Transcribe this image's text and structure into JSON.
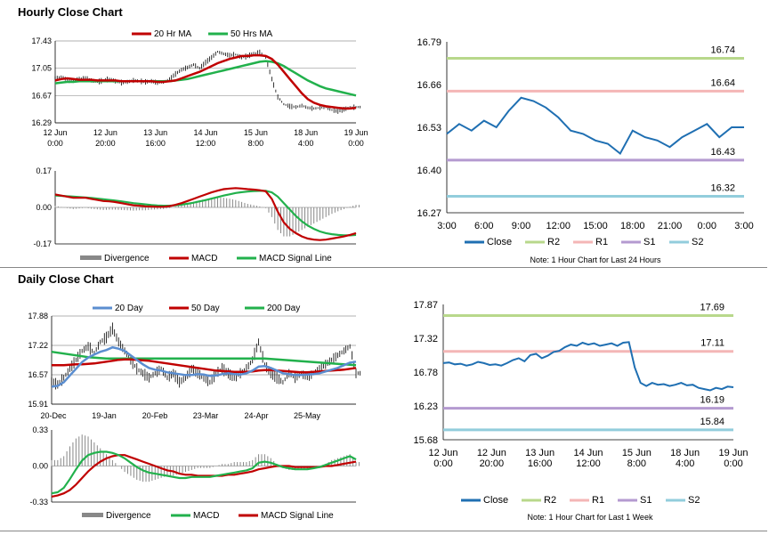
{
  "sections": {
    "hourly_title": "Hourly Close Chart",
    "daily_title": "Daily Close Chart"
  },
  "colors": {
    "close": "#1f6fb2",
    "ma20_hourly": "#c00000",
    "ma50_hourly": "#22b14c",
    "r2": "#b8d88b",
    "r1": "#f4b6b6",
    "s1": "#b49ad0",
    "s2": "#92cddc",
    "day20": "#5b8ed0",
    "day50": "#c00000",
    "day200": "#22b14c",
    "divergence": "#888888",
    "macd_hourly": "#c00000",
    "signal_hourly": "#22b14c",
    "macd_daily": "#22b14c",
    "signal_daily": "#c00000"
  },
  "chart_data": [
    {
      "id": "hourly_price",
      "type": "line",
      "title": "",
      "legend": [
        "20 Hr MA",
        "50 Hrs MA"
      ],
      "x_ticks": [
        "12 Jun\n0:00",
        "12 Jun\n20:00",
        "13 Jun\n16:00",
        "14 Jun\n12:00",
        "15 Jun\n8:00",
        "18 Jun\n4:00",
        "19 Jun\n0:00"
      ],
      "y_ticks": [
        "17.43",
        "17.05",
        "16.67",
        "16.29"
      ],
      "ylim": [
        16.29,
        17.43
      ],
      "series": [
        {
          "name": "Close",
          "values": [
            16.91,
            16.93,
            16.89,
            16.87,
            16.9,
            16.92,
            16.88,
            16.86,
            16.88,
            16.9,
            16.87,
            16.85,
            16.86,
            16.88,
            16.87,
            16.86,
            16.87,
            16.85,
            16.86,
            16.9,
            16.97,
            17.03,
            17.06,
            17.1,
            17.05,
            17.13,
            17.2,
            17.28,
            17.25,
            17.23,
            17.24,
            17.2,
            17.22,
            17.25,
            17.27,
            17.2,
            16.9,
            16.65,
            16.55,
            16.52,
            16.51,
            16.53,
            16.5,
            16.49,
            16.5,
            16.51,
            16.47,
            16.45,
            16.48,
            16.5,
            16.51
          ]
        },
        {
          "name": "20 Hr MA",
          "values": [
            16.88,
            16.9,
            16.91,
            16.9,
            16.89,
            16.89,
            16.89,
            16.88,
            16.88,
            16.88,
            16.88,
            16.87,
            16.87,
            16.87,
            16.87,
            16.87,
            16.87,
            16.86,
            16.86,
            16.87,
            16.88,
            16.91,
            16.94,
            16.97,
            17.0,
            17.04,
            17.08,
            17.12,
            17.15,
            17.18,
            17.2,
            17.22,
            17.22,
            17.23,
            17.23,
            17.22,
            17.18,
            17.1,
            17.0,
            16.9,
            16.8,
            16.7,
            16.62,
            16.57,
            16.54,
            16.52,
            16.51,
            16.5,
            16.49,
            16.49,
            16.5
          ]
        },
        {
          "name": "50 Hrs MA",
          "values": [
            16.84,
            16.85,
            16.86,
            16.86,
            16.87,
            16.87,
            16.87,
            16.87,
            16.87,
            16.87,
            16.87,
            16.87,
            16.87,
            16.87,
            16.87,
            16.87,
            16.87,
            16.87,
            16.87,
            16.87,
            16.88,
            16.89,
            16.9,
            16.92,
            16.94,
            16.96,
            16.98,
            17.0,
            17.02,
            17.04,
            17.06,
            17.08,
            17.1,
            17.12,
            17.14,
            17.15,
            17.14,
            17.12,
            17.08,
            17.03,
            16.98,
            16.93,
            16.88,
            16.84,
            16.8,
            16.77,
            16.75,
            16.73,
            16.71,
            16.69,
            16.67
          ]
        }
      ]
    },
    {
      "id": "hourly_macd",
      "type": "line",
      "legend": [
        "Divergence",
        "MACD",
        "MACD Signal Line"
      ],
      "y_ticks": [
        "0.17",
        "0.00",
        "-0.17"
      ],
      "ylim": [
        -0.17,
        0.17
      ],
      "series": [
        {
          "name": "MACD",
          "values": [
            0.06,
            0.055,
            0.05,
            0.045,
            0.045,
            0.045,
            0.04,
            0.035,
            0.03,
            0.028,
            0.025,
            0.02,
            0.015,
            0.01,
            0.008,
            0.005,
            0.004,
            0.003,
            0.003,
            0.006,
            0.012,
            0.02,
            0.03,
            0.04,
            0.05,
            0.06,
            0.07,
            0.078,
            0.085,
            0.088,
            0.09,
            0.088,
            0.085,
            0.083,
            0.08,
            0.075,
            0.04,
            -0.02,
            -0.07,
            -0.1,
            -0.12,
            -0.135,
            -0.145,
            -0.15,
            -0.152,
            -0.15,
            -0.145,
            -0.14,
            -0.135,
            -0.128,
            -0.12
          ]
        },
        {
          "name": "MACD Signal Line",
          "values": [
            0.055,
            0.054,
            0.052,
            0.05,
            0.048,
            0.046,
            0.044,
            0.041,
            0.038,
            0.035,
            0.032,
            0.028,
            0.024,
            0.02,
            0.017,
            0.014,
            0.011,
            0.009,
            0.008,
            0.008,
            0.01,
            0.013,
            0.017,
            0.022,
            0.028,
            0.034,
            0.041,
            0.048,
            0.055,
            0.061,
            0.067,
            0.071,
            0.074,
            0.076,
            0.077,
            0.077,
            0.07,
            0.05,
            0.02,
            -0.01,
            -0.04,
            -0.065,
            -0.085,
            -0.1,
            -0.112,
            -0.12,
            -0.125,
            -0.128,
            -0.13,
            -0.13,
            -0.128
          ]
        }
      ]
    },
    {
      "id": "hourly_pivot",
      "type": "line",
      "legend": [
        "Close",
        "R2",
        "R1",
        "S1",
        "S2"
      ],
      "note": "Note: 1 Hour Chart for Last 24 Hours",
      "x_ticks": [
        "3:00",
        "6:00",
        "9:00",
        "12:00",
        "15:00",
        "18:00",
        "21:00",
        "0:00",
        "3:00"
      ],
      "y_ticks": [
        "16.79",
        "16.66",
        "16.53",
        "16.40",
        "16.27"
      ],
      "ylim": [
        16.27,
        16.79
      ],
      "levels": {
        "R2": 16.74,
        "R1": 16.64,
        "S1": 16.43,
        "S2": 16.32
      },
      "level_labels": {
        "R2": "16.74",
        "R1": "16.64",
        "S1": "16.43",
        "S2": "16.32"
      },
      "series": [
        {
          "name": "Close",
          "values": [
            16.51,
            16.54,
            16.52,
            16.55,
            16.53,
            16.58,
            16.62,
            16.61,
            16.59,
            16.56,
            16.52,
            16.51,
            16.49,
            16.48,
            16.45,
            16.52,
            16.5,
            16.49,
            16.47,
            16.5,
            16.52,
            16.54,
            16.5,
            16.53,
            16.53
          ]
        }
      ]
    },
    {
      "id": "daily_price",
      "type": "line",
      "legend": [
        "20 Day",
        "50 Day",
        "200 Day"
      ],
      "x_ticks": [
        "20-Dec",
        "19-Jan",
        "20-Feb",
        "23-Mar",
        "24-Apr",
        "25-May"
      ],
      "y_ticks": [
        "17.88",
        "17.22",
        "16.57",
        "15.91"
      ],
      "ylim": [
        15.91,
        17.88
      ],
      "series": [
        {
          "name": "Close",
          "values": [
            16.4,
            16.35,
            16.5,
            16.7,
            16.9,
            17.1,
            17.2,
            17.05,
            17.3,
            17.4,
            17.6,
            17.3,
            17.1,
            16.9,
            16.7,
            16.6,
            16.5,
            16.6,
            16.7,
            16.5,
            16.6,
            16.4,
            16.5,
            16.7,
            16.6,
            16.5,
            16.4,
            16.6,
            16.7,
            16.6,
            16.5,
            16.6,
            16.7,
            16.9,
            17.3,
            16.8,
            16.6,
            16.5,
            16.4,
            16.6,
            16.5,
            16.6,
            16.5,
            16.6,
            16.7,
            16.8,
            16.9,
            17.0,
            17.1,
            17.2,
            16.6
          ]
        },
        {
          "name": "20 Day",
          "values": [
            16.3,
            16.32,
            16.4,
            16.55,
            16.7,
            16.85,
            16.95,
            17.02,
            17.08,
            17.12,
            17.18,
            17.15,
            17.1,
            17.0,
            16.9,
            16.8,
            16.72,
            16.68,
            16.66,
            16.62,
            16.6,
            16.58,
            16.56,
            16.56,
            16.58,
            16.57,
            16.54,
            16.55,
            16.58,
            16.6,
            16.58,
            16.57,
            16.6,
            16.66,
            16.75,
            16.76,
            16.72,
            16.66,
            16.6,
            16.58,
            16.56,
            16.56,
            16.57,
            16.58,
            16.6,
            16.64,
            16.68,
            16.72,
            16.78,
            16.84,
            16.86
          ]
        },
        {
          "name": "50 Day",
          "values": [
            16.78,
            16.78,
            16.78,
            16.79,
            16.8,
            16.8,
            16.81,
            16.82,
            16.84,
            16.86,
            16.88,
            16.9,
            16.91,
            16.91,
            16.9,
            16.89,
            16.88,
            16.86,
            16.84,
            16.82,
            16.8,
            16.78,
            16.76,
            16.74,
            16.72,
            16.7,
            16.68,
            16.66,
            16.65,
            16.64,
            16.63,
            16.63,
            16.63,
            16.64,
            16.66,
            16.67,
            16.67,
            16.66,
            16.65,
            16.64,
            16.63,
            16.62,
            16.62,
            16.63,
            16.64,
            16.65,
            16.66,
            16.67,
            16.68,
            16.7,
            16.72
          ]
        },
        {
          "name": "200 Day",
          "values": [
            17.08,
            17.06,
            17.04,
            17.02,
            17.0,
            16.98,
            16.96,
            16.95,
            16.94,
            16.93,
            16.93,
            16.93,
            16.93,
            16.93,
            16.93,
            16.93,
            16.93,
            16.93,
            16.93,
            16.93,
            16.93,
            16.93,
            16.93,
            16.93,
            16.93,
            16.93,
            16.93,
            16.93,
            16.93,
            16.93,
            16.93,
            16.93,
            16.93,
            16.93,
            16.93,
            16.93,
            16.92,
            16.91,
            16.9,
            16.89,
            16.88,
            16.87,
            16.86,
            16.85,
            16.84,
            16.83,
            16.82,
            16.81,
            16.8,
            16.79,
            16.78
          ]
        }
      ]
    },
    {
      "id": "daily_macd",
      "type": "line",
      "legend": [
        "Divergence",
        "MACD",
        "MACD Signal Line"
      ],
      "y_ticks": [
        "0.33",
        "0.00",
        "-0.33"
      ],
      "ylim": [
        -0.33,
        0.33
      ],
      "series": [
        {
          "name": "MACD",
          "values": [
            -0.25,
            -0.24,
            -0.2,
            -0.12,
            -0.03,
            0.05,
            0.1,
            0.12,
            0.13,
            0.13,
            0.12,
            0.1,
            0.07,
            0.03,
            -0.01,
            -0.04,
            -0.06,
            -0.07,
            -0.08,
            -0.09,
            -0.1,
            -0.11,
            -0.11,
            -0.1,
            -0.1,
            -0.1,
            -0.1,
            -0.09,
            -0.08,
            -0.07,
            -0.06,
            -0.05,
            -0.04,
            -0.02,
            0.03,
            0.04,
            0.03,
            0.01,
            -0.01,
            -0.02,
            -0.03,
            -0.03,
            -0.03,
            -0.02,
            -0.01,
            0.01,
            0.03,
            0.05,
            0.07,
            0.09,
            0.06
          ]
        },
        {
          "name": "MACD Signal Line",
          "values": [
            -0.28,
            -0.27,
            -0.25,
            -0.22,
            -0.17,
            -0.11,
            -0.05,
            0.0,
            0.04,
            0.07,
            0.09,
            0.1,
            0.1,
            0.08,
            0.06,
            0.04,
            0.02,
            0.0,
            -0.02,
            -0.04,
            -0.05,
            -0.07,
            -0.08,
            -0.08,
            -0.09,
            -0.09,
            -0.09,
            -0.09,
            -0.09,
            -0.08,
            -0.08,
            -0.07,
            -0.06,
            -0.05,
            -0.03,
            -0.02,
            -0.01,
            0.0,
            0.0,
            0.0,
            -0.01,
            -0.01,
            -0.01,
            -0.01,
            -0.01,
            0.0,
            0.0,
            0.01,
            0.02,
            0.03,
            0.04
          ]
        }
      ]
    },
    {
      "id": "weekly_pivot",
      "type": "line",
      "legend": [
        "Close",
        "R2",
        "R1",
        "S1",
        "S2"
      ],
      "note": "Note: 1 Hour Chart for Last 1 Week",
      "x_ticks": [
        "12 Jun\n0:00",
        "12 Jun\n20:00",
        "13 Jun\n16:00",
        "14 Jun\n12:00",
        "15 Jun\n8:00",
        "18 Jun\n4:00",
        "19 Jun\n0:00"
      ],
      "y_ticks": [
        "17.87",
        "17.32",
        "16.78",
        "16.23",
        "15.68"
      ],
      "ylim": [
        15.68,
        17.87
      ],
      "levels": {
        "R2": 17.69,
        "R1": 17.11,
        "S1": 16.19,
        "S2": 15.84
      },
      "level_labels": {
        "R2": "17.69",
        "R1": "17.11",
        "S1": "16.19",
        "S2": "15.84"
      },
      "series": [
        {
          "name": "Close",
          "values": [
            16.92,
            16.93,
            16.9,
            16.91,
            16.88,
            16.9,
            16.94,
            16.92,
            16.89,
            16.9,
            16.88,
            16.92,
            16.97,
            17.0,
            16.95,
            17.05,
            17.07,
            17.0,
            17.04,
            17.1,
            17.12,
            17.18,
            17.22,
            17.2,
            17.25,
            17.22,
            17.24,
            17.2,
            17.22,
            17.24,
            17.2,
            17.25,
            17.26,
            16.85,
            16.6,
            16.55,
            16.6,
            16.57,
            16.58,
            16.55,
            16.57,
            16.6,
            16.56,
            16.57,
            16.52,
            16.5,
            16.48,
            16.52,
            16.5,
            16.54,
            16.53
          ]
        }
      ]
    }
  ]
}
